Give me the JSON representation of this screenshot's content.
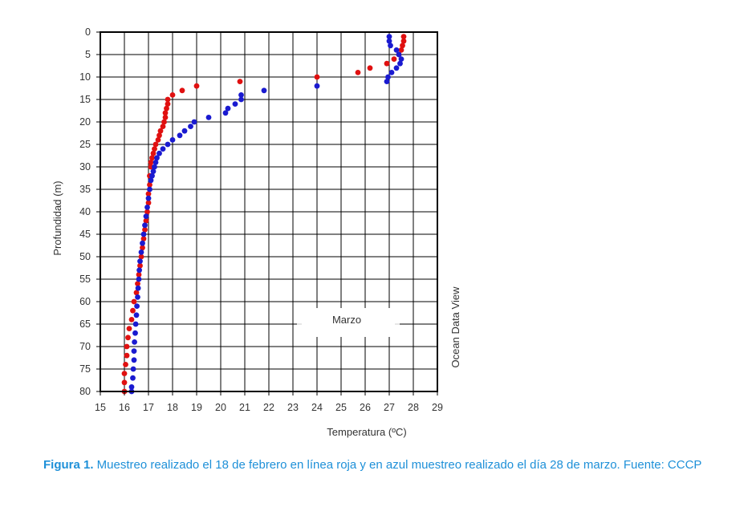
{
  "chart_data": {
    "type": "scatter",
    "title": "",
    "xlabel": "Temperatura (ºC)",
    "ylabel": "Profundidad (m)",
    "xlim": [
      15,
      29
    ],
    "ylim": [
      80,
      0
    ],
    "y_inverted": true,
    "x_ticks": [
      15,
      16,
      17,
      18,
      19,
      20,
      21,
      22,
      23,
      24,
      25,
      26,
      27,
      28,
      29
    ],
    "y_ticks": [
      0,
      5,
      10,
      15,
      20,
      25,
      30,
      35,
      40,
      45,
      50,
      55,
      60,
      65,
      70,
      75,
      80
    ],
    "grid": true,
    "legend": {
      "label": "Marzo",
      "placement": "inside-lower-right"
    },
    "side_label": "Ocean Data View",
    "series": [
      {
        "color": "#e01010",
        "points": [
          [
            27.6,
            1
          ],
          [
            27.6,
            2
          ],
          [
            27.55,
            3
          ],
          [
            27.5,
            4
          ],
          [
            27.4,
            5
          ],
          [
            27.2,
            6
          ],
          [
            26.9,
            7
          ],
          [
            26.2,
            8
          ],
          [
            25.7,
            9
          ],
          [
            24.0,
            10
          ],
          [
            20.8,
            11
          ],
          [
            19.0,
            12
          ],
          [
            18.4,
            13
          ],
          [
            18.0,
            14
          ],
          [
            17.8,
            15
          ],
          [
            17.8,
            16
          ],
          [
            17.75,
            17
          ],
          [
            17.7,
            18
          ],
          [
            17.7,
            19
          ],
          [
            17.65,
            20
          ],
          [
            17.6,
            21
          ],
          [
            17.5,
            22
          ],
          [
            17.45,
            23
          ],
          [
            17.4,
            24
          ],
          [
            17.3,
            25
          ],
          [
            17.25,
            26
          ],
          [
            17.2,
            27
          ],
          [
            17.15,
            28
          ],
          [
            17.1,
            29
          ],
          [
            17.1,
            30
          ],
          [
            17.05,
            32
          ],
          [
            17.05,
            34
          ],
          [
            17.0,
            36
          ],
          [
            17.0,
            38
          ],
          [
            16.95,
            40
          ],
          [
            16.9,
            42
          ],
          [
            16.85,
            44
          ],
          [
            16.8,
            46
          ],
          [
            16.75,
            48
          ],
          [
            16.7,
            50
          ],
          [
            16.65,
            52
          ],
          [
            16.6,
            54
          ],
          [
            16.55,
            56
          ],
          [
            16.5,
            58
          ],
          [
            16.4,
            60
          ],
          [
            16.35,
            62
          ],
          [
            16.3,
            64
          ],
          [
            16.2,
            66
          ],
          [
            16.15,
            68
          ],
          [
            16.1,
            70
          ],
          [
            16.1,
            72
          ],
          [
            16.05,
            74
          ],
          [
            16.0,
            76
          ],
          [
            16.0,
            78
          ],
          [
            16.0,
            80
          ]
        ]
      },
      {
        "color": "#1a1ad0",
        "points": [
          [
            27.0,
            1
          ],
          [
            27.0,
            2
          ],
          [
            27.05,
            3
          ],
          [
            27.3,
            4
          ],
          [
            27.4,
            5
          ],
          [
            27.5,
            6
          ],
          [
            27.45,
            7
          ],
          [
            27.3,
            8
          ],
          [
            27.1,
            9
          ],
          [
            26.95,
            10
          ],
          [
            26.9,
            11
          ],
          [
            24.0,
            12
          ],
          [
            21.8,
            13
          ],
          [
            20.85,
            14
          ],
          [
            20.85,
            15
          ],
          [
            20.6,
            16
          ],
          [
            20.3,
            17
          ],
          [
            20.2,
            18
          ],
          [
            19.5,
            19
          ],
          [
            18.9,
            20
          ],
          [
            18.75,
            21
          ],
          [
            18.5,
            22
          ],
          [
            18.3,
            23
          ],
          [
            18.0,
            24
          ],
          [
            17.8,
            25
          ],
          [
            17.6,
            26
          ],
          [
            17.45,
            27
          ],
          [
            17.35,
            28
          ],
          [
            17.3,
            29
          ],
          [
            17.25,
            30
          ],
          [
            17.2,
            31
          ],
          [
            17.15,
            32
          ],
          [
            17.1,
            33
          ],
          [
            17.05,
            35
          ],
          [
            17.0,
            37
          ],
          [
            16.95,
            39
          ],
          [
            16.9,
            41
          ],
          [
            16.85,
            43
          ],
          [
            16.8,
            45
          ],
          [
            16.75,
            47
          ],
          [
            16.7,
            49
          ],
          [
            16.65,
            51
          ],
          [
            16.62,
            53
          ],
          [
            16.6,
            55
          ],
          [
            16.57,
            57
          ],
          [
            16.55,
            59
          ],
          [
            16.52,
            61
          ],
          [
            16.5,
            63
          ],
          [
            16.47,
            65
          ],
          [
            16.45,
            67
          ],
          [
            16.42,
            69
          ],
          [
            16.4,
            71
          ],
          [
            16.4,
            73
          ],
          [
            16.37,
            75
          ],
          [
            16.35,
            77
          ],
          [
            16.3,
            79
          ],
          [
            16.3,
            80
          ]
        ]
      }
    ]
  },
  "caption": {
    "label": "Figura 1.",
    "text": " Muestreo realizado el 18 de febrero en línea roja y en azul muestreo realizado el día 28 de marzo. Fuente: CCCP"
  }
}
